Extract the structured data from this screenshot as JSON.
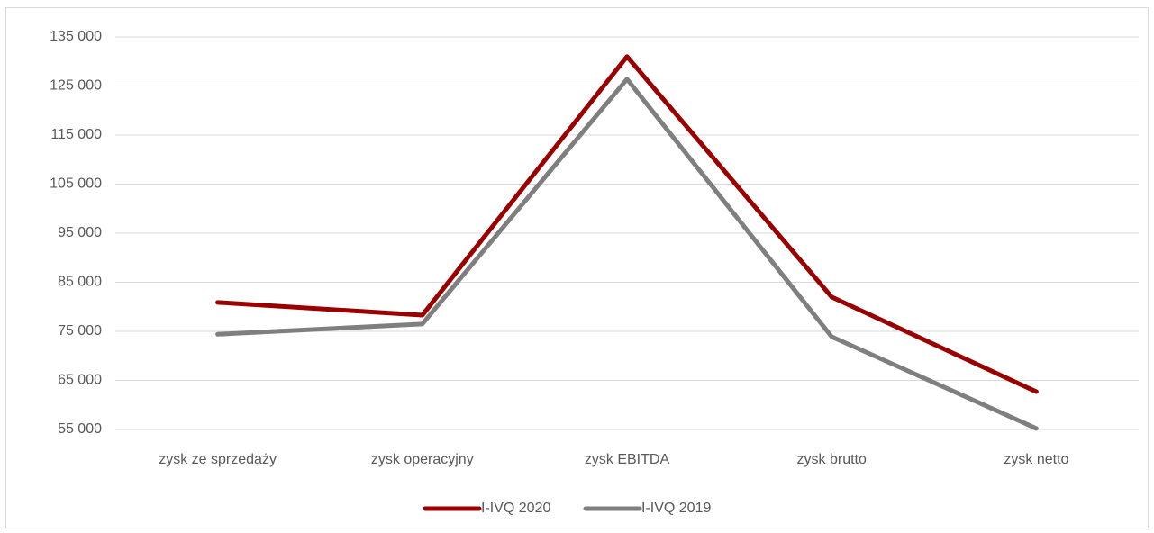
{
  "chart_data": {
    "type": "line",
    "categories": [
      "zysk ze sprzedaży",
      "zysk operacyjny",
      "zysk EBITDA",
      "zysk brutto",
      "zysk netto"
    ],
    "series": [
      {
        "name": "I-IVQ 2020",
        "color": "#990000",
        "values": [
          80900,
          78300,
          131000,
          82000,
          62700
        ]
      },
      {
        "name": "I-IVQ 2019",
        "color": "#7f7f7f",
        "values": [
          74400,
          76500,
          126400,
          73900,
          55200
        ]
      }
    ],
    "ylim": [
      55000,
      135000
    ],
    "yticks": [
      {
        "value": 55000,
        "label": "55 000"
      },
      {
        "value": 65000,
        "label": "65 000"
      },
      {
        "value": 75000,
        "label": "75 000"
      },
      {
        "value": 85000,
        "label": "85 000"
      },
      {
        "value": 95000,
        "label": "95 000"
      },
      {
        "value": 105000,
        "label": "105 000"
      },
      {
        "value": 115000,
        "label": "115 000"
      },
      {
        "value": 125000,
        "label": "125 000"
      },
      {
        "value": 135000,
        "label": "135 000"
      }
    ],
    "grid": true,
    "legend": "bottom"
  }
}
